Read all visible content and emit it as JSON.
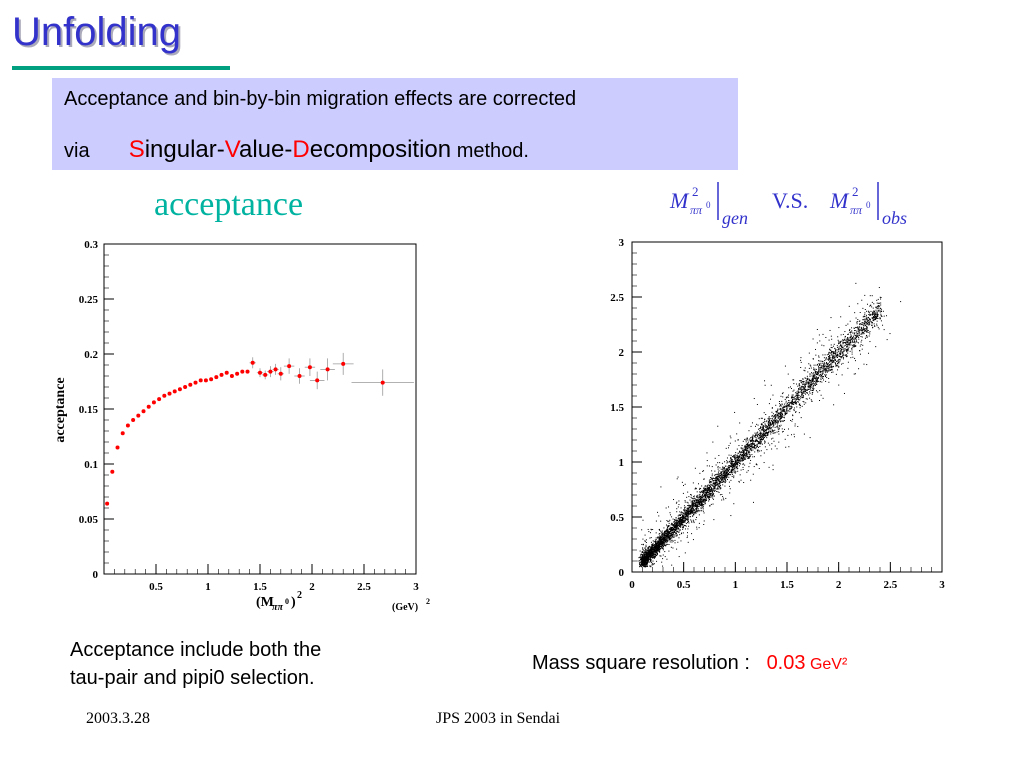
{
  "slide": {
    "title": "Unfolding",
    "box": {
      "line1": "Acceptance and bin-by-bin migration effects are corrected",
      "via": "via",
      "s": "S",
      "ingular": "ingular-",
      "v": "V",
      "alue": "alue-",
      "d": "D",
      "ecomposition": "ecomposition",
      "method": " method."
    },
    "left_chart_title": "acceptance",
    "formula": {
      "m1": "M",
      "sup1": "2",
      "sub1": "ππ",
      "subsup1": "0",
      "label1": "gen",
      "vs": "V.S.",
      "m2": "M",
      "sup2": "2",
      "sub2": "ππ",
      "subsup2": "0",
      "label2": "obs"
    },
    "caption_left_line1": "Acceptance include both the",
    "caption_left_line2": "tau-pair and pipi0 selection.",
    "caption_right_label": "Mass square resolution :  ",
    "caption_right_value": "0.03",
    "caption_right_unit": " GeV²",
    "footer_date": "2003.3.28",
    "footer_conf": "JPS 2003 in Sendai"
  },
  "chart_data": [
    {
      "type": "scatter",
      "ylabel": "acceptance",
      "xlabel_main": "(M",
      "xlabel_sub": "ππ",
      "xlabel_subsup": "0",
      "xlabel_close": ")",
      "xlabel_pow": "2",
      "xunit": "(GeV)",
      "xunit_pow": "2",
      "xlim": [
        0,
        3
      ],
      "ylim": [
        0,
        0.3
      ],
      "xticks": [
        "0.5",
        "1",
        "1.5",
        "2",
        "2.5",
        "3"
      ],
      "yticks": [
        "0",
        "0.05",
        "0.1",
        "0.15",
        "0.2",
        "0.25",
        "0.3"
      ],
      "color": "#ff0000",
      "points": [
        {
          "x": 0.03,
          "y": 0.064
        },
        {
          "x": 0.08,
          "y": 0.093
        },
        {
          "x": 0.13,
          "y": 0.115
        },
        {
          "x": 0.18,
          "y": 0.128
        },
        {
          "x": 0.23,
          "y": 0.135
        },
        {
          "x": 0.28,
          "y": 0.14
        },
        {
          "x": 0.33,
          "y": 0.144
        },
        {
          "x": 0.38,
          "y": 0.148
        },
        {
          "x": 0.43,
          "y": 0.152
        },
        {
          "x": 0.48,
          "y": 0.156
        },
        {
          "x": 0.53,
          "y": 0.159
        },
        {
          "x": 0.58,
          "y": 0.162
        },
        {
          "x": 0.63,
          "y": 0.164
        },
        {
          "x": 0.68,
          "y": 0.166
        },
        {
          "x": 0.73,
          "y": 0.168
        },
        {
          "x": 0.78,
          "y": 0.17
        },
        {
          "x": 0.83,
          "y": 0.172
        },
        {
          "x": 0.88,
          "y": 0.174
        },
        {
          "x": 0.93,
          "y": 0.176
        },
        {
          "x": 0.98,
          "y": 0.176
        },
        {
          "x": 1.03,
          "y": 0.177
        },
        {
          "x": 1.08,
          "y": 0.179
        },
        {
          "x": 1.13,
          "y": 0.181
        },
        {
          "x": 1.18,
          "y": 0.183
        },
        {
          "x": 1.23,
          "y": 0.18
        },
        {
          "x": 1.28,
          "y": 0.182
        },
        {
          "x": 1.33,
          "y": 0.184
        },
        {
          "x": 1.38,
          "y": 0.184
        },
        {
          "x": 1.43,
          "y": 0.192,
          "ex": 0.03,
          "ey": 0.005
        },
        {
          "x": 1.5,
          "y": 0.183,
          "ex": 0.03,
          "ey": 0.004
        },
        {
          "x": 1.55,
          "y": 0.181,
          "ex": 0.03,
          "ey": 0.004
        },
        {
          "x": 1.6,
          "y": 0.184,
          "ex": 0.03,
          "ey": 0.005
        },
        {
          "x": 1.65,
          "y": 0.186,
          "ex": 0.03,
          "ey": 0.005
        },
        {
          "x": 1.7,
          "y": 0.182,
          "ex": 0.03,
          "ey": 0.006
        },
        {
          "x": 1.78,
          "y": 0.189,
          "ex": 0.05,
          "ey": 0.007
        },
        {
          "x": 1.88,
          "y": 0.18,
          "ex": 0.05,
          "ey": 0.007
        },
        {
          "x": 1.98,
          "y": 0.188,
          "ex": 0.05,
          "ey": 0.008
        },
        {
          "x": 2.05,
          "y": 0.176,
          "ex": 0.07,
          "ey": 0.008
        },
        {
          "x": 2.15,
          "y": 0.186,
          "ex": 0.07,
          "ey": 0.01
        },
        {
          "x": 2.3,
          "y": 0.191,
          "ex": 0.1,
          "ey": 0.01
        },
        {
          "x": 2.68,
          "y": 0.174,
          "ex": 0.3,
          "ey": 0.012
        }
      ]
    },
    {
      "type": "scatter",
      "xlim": [
        0,
        3
      ],
      "ylim": [
        0,
        3
      ],
      "xticks": [
        "0",
        "0.5",
        "1",
        "1.5",
        "2",
        "2.5",
        "3"
      ],
      "yticks": [
        "0",
        "0.5",
        "1",
        "1.5",
        "2",
        "2.5",
        "3"
      ],
      "color": "#000000",
      "relation": "y ≈ x",
      "resolution": 0.03
    }
  ]
}
